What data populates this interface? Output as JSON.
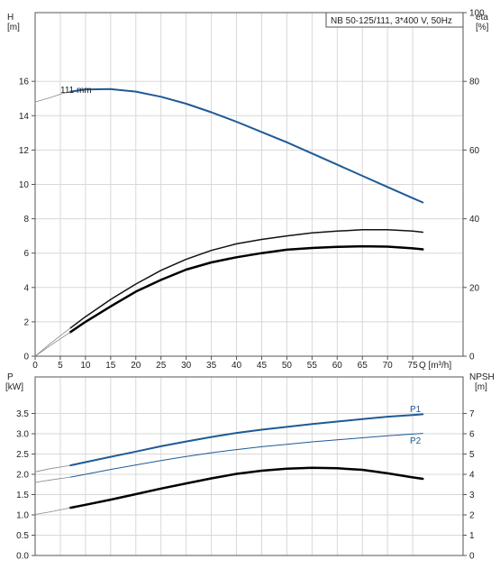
{
  "chart_data": [
    {
      "type": "line",
      "title": "NB 50-125/111, 3*400 V, 50Hz",
      "left_axis": {
        "label": "H",
        "unit": "[m]",
        "ylim": [
          0,
          20
        ],
        "ticks": [
          0,
          2,
          4,
          6,
          8,
          10,
          12,
          14,
          16
        ]
      },
      "right_axis": {
        "label": "eta",
        "unit": "[%]",
        "ylim": [
          0,
          100
        ],
        "ticks": [
          0,
          20,
          40,
          60,
          80,
          100
        ]
      },
      "x_axis": {
        "label": "Q [m³/h]",
        "xlim": [
          0,
          85
        ],
        "ticks": [
          0,
          5,
          10,
          15,
          20,
          25,
          30,
          35,
          40,
          45,
          50,
          55,
          60,
          65,
          70,
          75
        ]
      },
      "annotation": "111 mm",
      "grid": true,
      "series": [
        {
          "axis": "left",
          "color": "#1f5a96",
          "width": 2,
          "x": [
            7,
            10,
            15,
            20,
            25,
            30,
            35,
            40,
            45,
            50,
            55,
            60,
            65,
            70,
            75,
            77
          ],
          "y": [
            15.4,
            15.52,
            15.55,
            15.4,
            15.1,
            14.7,
            14.2,
            13.65,
            13.05,
            12.45,
            11.8,
            11.15,
            10.5,
            9.85,
            9.2,
            8.95
          ]
        },
        {
          "axis": "left",
          "color": "#888888",
          "width": 0.8,
          "x": [
            0,
            3,
            5,
            7
          ],
          "y": [
            14.8,
            15.05,
            15.25,
            15.4
          ]
        },
        {
          "axis": "right",
          "color": "#111111",
          "width": 1.5,
          "x": [
            7,
            10,
            15,
            20,
            25,
            30,
            35,
            40,
            45,
            50,
            55,
            60,
            65,
            70,
            75,
            77
          ],
          "y": [
            8.2,
            11.5,
            16.5,
            21,
            25,
            28.2,
            30.8,
            32.7,
            34,
            35,
            35.9,
            36.4,
            36.8,
            36.8,
            36.4,
            36.1
          ]
        },
        {
          "axis": "right",
          "color": "#000000",
          "width": 2.5,
          "x": [
            7,
            10,
            15,
            20,
            25,
            30,
            35,
            40,
            45,
            50,
            55,
            60,
            65,
            70,
            75,
            77
          ],
          "y": [
            7,
            10,
            14.5,
            18.8,
            22.2,
            25.2,
            27.3,
            28.8,
            30,
            31,
            31.5,
            31.8,
            32,
            31.9,
            31.4,
            31.1
          ]
        },
        {
          "axis": "right",
          "color": "#888888",
          "width": 0.8,
          "x": [
            0,
            3,
            7
          ],
          "y": [
            0,
            3.7,
            8.2
          ]
        },
        {
          "axis": "right",
          "color": "#888888",
          "width": 0.8,
          "x": [
            0,
            3,
            7
          ],
          "y": [
            0,
            3.1,
            7
          ]
        }
      ]
    },
    {
      "type": "line",
      "left_axis": {
        "label": "P",
        "unit": "[kW]",
        "ylim": [
          0,
          4.4
        ],
        "ticks": [
          0.0,
          0.5,
          1.0,
          1.5,
          2.0,
          2.5,
          3.0,
          3.5
        ]
      },
      "right_axis": {
        "label": "NPSH",
        "unit": "[m]",
        "ylim": [
          0,
          8.8
        ],
        "ticks": [
          0,
          1,
          2,
          3,
          4,
          5,
          6,
          7
        ]
      },
      "x_axis": {
        "xlim": [
          0,
          85
        ]
      },
      "grid": true,
      "series": [
        {
          "name": "P1",
          "axis": "left",
          "color": "#1f5a96",
          "width": 2,
          "x": [
            7,
            10,
            15,
            20,
            25,
            30,
            35,
            40,
            45,
            50,
            55,
            60,
            65,
            70,
            75,
            77
          ],
          "y": [
            2.22,
            2.3,
            2.43,
            2.56,
            2.69,
            2.81,
            2.92,
            3.02,
            3.1,
            3.17,
            3.24,
            3.3,
            3.36,
            3.42,
            3.46,
            3.48
          ]
        },
        {
          "name": "P2",
          "axis": "left",
          "color": "#1f5a96",
          "width": 1,
          "x": [
            7,
            10,
            15,
            20,
            25,
            30,
            35,
            40,
            45,
            50,
            55,
            60,
            65,
            70,
            75,
            77
          ],
          "y": [
            1.93,
            2,
            2.12,
            2.23,
            2.34,
            2.44,
            2.53,
            2.61,
            2.68,
            2.74,
            2.8,
            2.85,
            2.9,
            2.95,
            2.99,
            3.01
          ]
        },
        {
          "axis": "right",
          "color": "#000000",
          "width": 2.5,
          "x": [
            7,
            10,
            15,
            20,
            25,
            30,
            35,
            40,
            45,
            50,
            55,
            60,
            65,
            70,
            75,
            77
          ],
          "y": [
            2.35,
            2.5,
            2.75,
            3.02,
            3.3,
            3.55,
            3.8,
            4.02,
            4.18,
            4.28,
            4.32,
            4.3,
            4.22,
            4.05,
            3.85,
            3.78
          ]
        },
        {
          "axis": "left",
          "color": "#888888",
          "width": 0.8,
          "x": [
            0,
            3,
            7
          ],
          "y": [
            2.06,
            2.14,
            2.22
          ]
        },
        {
          "axis": "left",
          "color": "#888888",
          "width": 0.8,
          "x": [
            0,
            3,
            7
          ],
          "y": [
            1.8,
            1.86,
            1.93
          ]
        },
        {
          "axis": "right",
          "color": "#888888",
          "width": 0.8,
          "x": [
            0,
            3,
            7
          ],
          "y": [
            2.02,
            2.15,
            2.35
          ]
        }
      ]
    }
  ]
}
